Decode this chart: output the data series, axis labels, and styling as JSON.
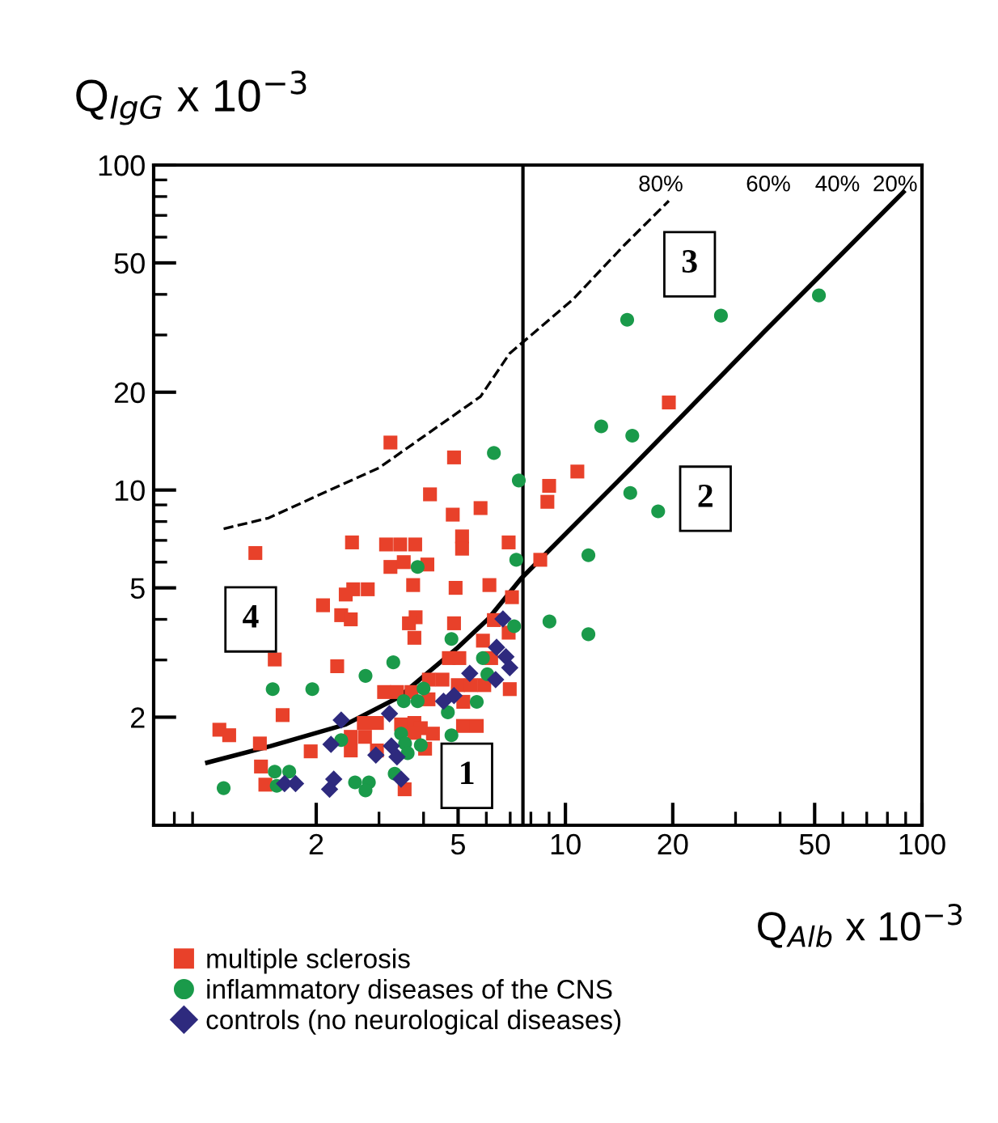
{
  "chart_data": {
    "type": "scatter",
    "xlabel": "Q$_{Alb}$ x 10$^{−3}$",
    "ylabel": "Q$_{IgG}$ x 10$^{−3}$",
    "log": "xy",
    "xlim": [
      0.7,
      100
    ],
    "ylim": [
      0.93,
      100
    ],
    "xticks": [
      2,
      5,
      10,
      20,
      50,
      100
    ],
    "yticks": [
      2,
      5,
      10,
      20,
      50,
      100
    ],
    "grid": false,
    "legend": "bottom",
    "series": [
      {
        "name": "multiple sclerosis",
        "marker": "square",
        "color": "#e8412a",
        "x": [
          4.87,
          4.17,
          5.78,
          4.83,
          5.13,
          2.52,
          3.14,
          3.44,
          3.79,
          5.13,
          6.93,
          9.0,
          8.9,
          1.35,
          3.23,
          3.52,
          4.1,
          8.5,
          3.74,
          4.92,
          6.12,
          2.54,
          2.79,
          2.42,
          2.09,
          2.35,
          2.5,
          3.8,
          3.64,
          4.87,
          6.3,
          3.77,
          6.93,
          5.87,
          4.71,
          5.04,
          6.19,
          1.53,
          2.29,
          4.14,
          4.52,
          4.99,
          5.43,
          5.92,
          6.98,
          3.1,
          3.37,
          3.7,
          4.13,
          5.17,
          1.61,
          2.72,
          2.96,
          3.46,
          3.77,
          3.93,
          5.16,
          5.64,
          1.07,
          1.14,
          1.39,
          2.5,
          2.74,
          3.77,
          4.25,
          1.93,
          2.5,
          2.96,
          4.04,
          1.4,
          1.44,
          3.54,
          7.08,
          3.23,
          19.5,
          10.8
        ],
        "values": [
          12.6,
          9.7,
          8.8,
          8.4,
          7.2,
          6.9,
          6.8,
          6.8,
          6.8,
          6.6,
          6.9,
          10.3,
          9.2,
          6.4,
          5.8,
          6.0,
          5.9,
          6.1,
          5.1,
          5.0,
          5.1,
          4.95,
          4.95,
          4.77,
          4.42,
          4.12,
          4.0,
          4.06,
          3.89,
          3.89,
          3.98,
          3.51,
          3.64,
          3.44,
          3.04,
          3.04,
          3.04,
          3.01,
          2.87,
          2.61,
          2.61,
          2.51,
          2.51,
          2.51,
          2.44,
          2.39,
          2.39,
          2.39,
          2.27,
          2.23,
          2.03,
          1.92,
          1.92,
          1.9,
          1.92,
          1.85,
          1.88,
          1.88,
          1.83,
          1.76,
          1.66,
          1.74,
          1.74,
          1.79,
          1.78,
          1.57,
          1.58,
          1.58,
          1.6,
          1.41,
          1.24,
          1.2,
          4.68,
          14.0,
          18.6,
          11.4
        ]
      },
      {
        "name": "inflammatory diseases of the CNS",
        "marker": "circle",
        "color": "#1a9a4a",
        "x": [
          6.3,
          7.4,
          7.28,
          3.85,
          9.02,
          7.18,
          4.79,
          5.87,
          3.29,
          2.75,
          6.04,
          1.51,
          1.95,
          4.0,
          3.52,
          3.85,
          5.64,
          4.68,
          3.46,
          4.79,
          2.35,
          3.55,
          3.93,
          3.61,
          1.53,
          1.68,
          3.32,
          1.1,
          1.55,
          2.57,
          2.81,
          2.75,
          51.4,
          27.3,
          14.9,
          12.6,
          15.4,
          15.2,
          18.2,
          11.6,
          11.6
        ],
        "values": [
          13.0,
          10.7,
          6.1,
          5.8,
          3.94,
          3.81,
          3.48,
          3.04,
          2.95,
          2.68,
          2.71,
          2.44,
          2.44,
          2.45,
          2.24,
          2.24,
          2.23,
          2.07,
          1.78,
          1.76,
          1.7,
          1.66,
          1.64,
          1.55,
          1.36,
          1.36,
          1.34,
          1.21,
          1.23,
          1.26,
          1.26,
          1.19,
          39.7,
          34.4,
          33.4,
          15.7,
          14.7,
          9.8,
          8.6,
          6.3,
          3.6
        ]
      },
      {
        "name": "controls (no neurological diseases)",
        "marker": "diamond",
        "color": "#2e2a7e",
        "x": [
          6.68,
          6.41,
          6.81,
          6.98,
          5.39,
          6.37,
          4.87,
          4.55,
          3.21,
          2.35,
          2.2,
          3.25,
          2.94,
          3.37,
          1.63,
          1.75,
          2.24,
          2.18,
          3.46
        ],
        "values": [
          4.01,
          3.28,
          3.07,
          2.84,
          2.73,
          2.61,
          2.33,
          2.24,
          2.05,
          1.96,
          1.65,
          1.63,
          1.53,
          1.51,
          1.25,
          1.25,
          1.29,
          1.2,
          1.29
        ]
      },
      {
        "type": "line",
        "line_style": "solid",
        "color": "#000000",
        "x": [
          0.99,
          1.49,
          2.42,
          3.4,
          4.95,
          6.07,
          7.52,
          15.3,
          36.1,
          88.7
        ],
        "values": [
          1.45,
          1.63,
          1.9,
          2.3,
          3.25,
          4.01,
          5.35,
          11.7,
          30.7,
          82.6
        ]
      },
      {
        "type": "line",
        "line_style": "dashed",
        "color": "#000000",
        "x": [
          1.1,
          1.47,
          2.14,
          3.0,
          5.78,
          6.97,
          10.5,
          14.6,
          19.5
        ],
        "values": [
          7.6,
          8.2,
          9.9,
          11.7,
          19.4,
          26.3,
          38.6,
          56.6,
          77.6
        ]
      }
    ],
    "ref_lines": [
      {
        "axis": "x",
        "value": 7.6,
        "color": "#000000"
      }
    ],
    "annotations": [
      {
        "text": "1",
        "x": 5.29,
        "y": 1.32
      },
      {
        "text": "2",
        "x": 24.7,
        "y": 9.4
      },
      {
        "text": "3",
        "x": 22.3,
        "y": 49.5
      },
      {
        "text": "4",
        "x": 1.31,
        "y": 4.0
      },
      "80%",
      "60%",
      "40%",
      "20%"
    ]
  }
}
